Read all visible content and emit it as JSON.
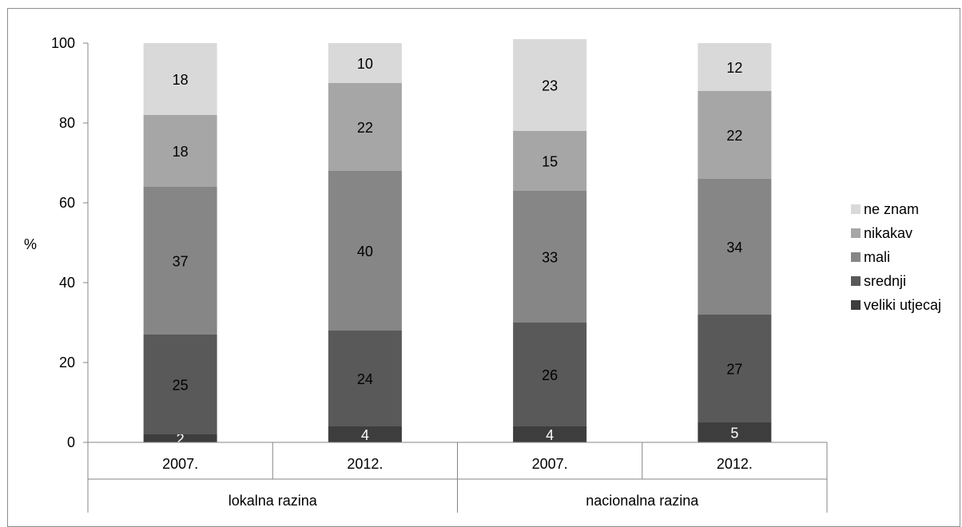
{
  "chart_data": {
    "type": "bar",
    "stacked": true,
    "ylabel": "%",
    "ylim": [
      0,
      100
    ],
    "yticks": [
      0,
      20,
      40,
      60,
      80,
      100
    ],
    "grid": false,
    "legend_position": "right",
    "categories": [
      "2007.",
      "2012.",
      "2007.",
      "2012."
    ],
    "groups": [
      {
        "label": "lokalna razina",
        "categories": [
          "2007.",
          "2012."
        ]
      },
      {
        "label": "nacionalna razina",
        "categories": [
          "2007.",
          "2012."
        ]
      }
    ],
    "series": [
      {
        "name": "veliki utjecaj",
        "color": "#3d3d3d",
        "label_color": "#ffffff",
        "values": [
          2,
          4,
          4,
          5
        ]
      },
      {
        "name": "srednji",
        "color": "#595959",
        "label_color": "#000000",
        "values": [
          25,
          24,
          26,
          27
        ]
      },
      {
        "name": "mali",
        "color": "#868686",
        "label_color": "#000000",
        "values": [
          37,
          40,
          33,
          34
        ]
      },
      {
        "name": "nikakav",
        "color": "#a6a6a6",
        "label_color": "#000000",
        "values": [
          18,
          22,
          15,
          22
        ]
      },
      {
        "name": "ne znam",
        "color": "#d9d9d9",
        "label_color": "#000000",
        "values": [
          18,
          10,
          23,
          12
        ]
      }
    ]
  }
}
